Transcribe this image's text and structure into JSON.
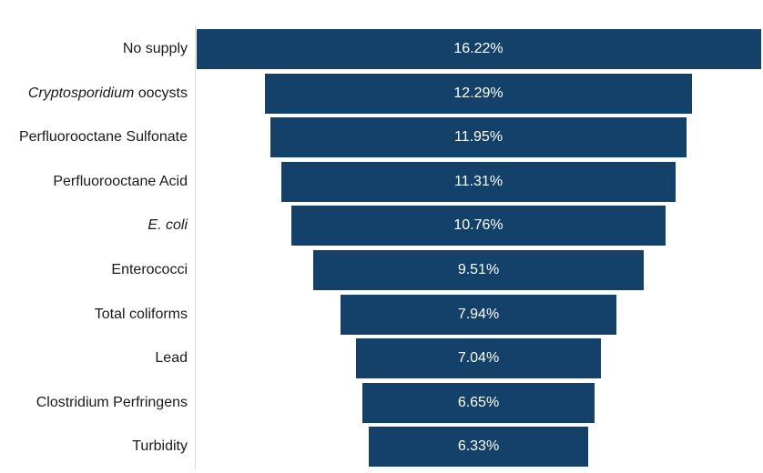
{
  "chart_data": {
    "type": "bar",
    "orientation": "horizontal-centered-funnel",
    "categories": [
      {
        "parts": [
          {
            "text": "No supply",
            "italic": false
          }
        ]
      },
      {
        "parts": [
          {
            "text": "Cryptosporidium",
            "italic": true
          },
          {
            "text": " oocysts",
            "italic": false
          }
        ]
      },
      {
        "parts": [
          {
            "text": "Perfluorooctane Sulfonate",
            "italic": false
          }
        ]
      },
      {
        "parts": [
          {
            "text": "Perfluorooctane Acid",
            "italic": false
          }
        ]
      },
      {
        "parts": [
          {
            "text": "E. coli",
            "italic": true
          }
        ]
      },
      {
        "parts": [
          {
            "text": "Enterococci",
            "italic": false
          }
        ]
      },
      {
        "parts": [
          {
            "text": "Total coliforms",
            "italic": false
          }
        ]
      },
      {
        "parts": [
          {
            "text": "Lead",
            "italic": false
          }
        ]
      },
      {
        "parts": [
          {
            "text": "Clostridium Perfringens",
            "italic": false
          }
        ]
      },
      {
        "parts": [
          {
            "text": "Turbidity",
            "italic": false
          }
        ]
      }
    ],
    "values": [
      16.22,
      12.29,
      11.95,
      11.31,
      10.76,
      9.51,
      7.94,
      7.04,
      6.65,
      6.33
    ],
    "value_labels": [
      "16.22%",
      "12.29%",
      "11.95%",
      "11.31%",
      "10.76%",
      "9.51%",
      "7.94%",
      "7.04%",
      "6.65%",
      "6.33%"
    ],
    "unit": "%",
    "bar_color": "#134169",
    "label_color": "#ffffff",
    "grid": false,
    "legend": "none"
  }
}
